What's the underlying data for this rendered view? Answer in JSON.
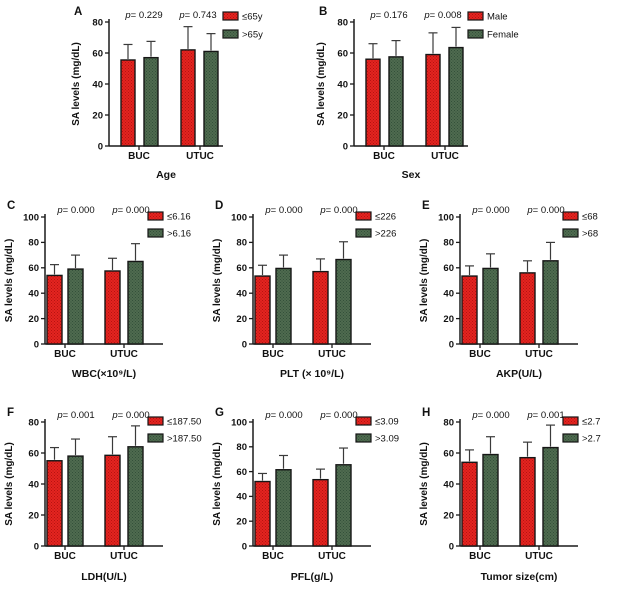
{
  "figure": {
    "background": "#ffffff",
    "ylabel": "SA levels (mg/dL)",
    "categories": [
      "BUC",
      "UTUC"
    ],
    "colors": {
      "red_base": "#e42420",
      "red_dot": "#b51310",
      "green_base": "#4f6b4f",
      "green_dot": "#33503a",
      "bar_stroke": "#161616",
      "axis": "#1a1a1a",
      "error_bar": "#3a3a3a"
    },
    "p_prefix": "p",
    "p_equals": "= "
  },
  "chart_data": [
    {
      "id": "A",
      "type": "bar",
      "row": 1,
      "xlabel": "Age",
      "ylabel": "SA levels (mg/dL)",
      "ymax": 80,
      "ytick_step": 20,
      "categories": [
        "BUC",
        "UTUC"
      ],
      "p_values": [
        "0.229",
        "0.743"
      ],
      "series": [
        {
          "name": "≤65y",
          "color": "red",
          "values": [
            55.5,
            62
          ],
          "errors": [
            10,
            15
          ]
        },
        {
          "name": ">65y",
          "color": "green",
          "values": [
            57,
            61
          ],
          "errors": [
            10.5,
            11.5
          ]
        }
      ]
    },
    {
      "id": "B",
      "type": "bar",
      "row": 1,
      "xlabel": "Sex",
      "ylabel": "SA levels (mg/dL)",
      "ymax": 80,
      "ytick_step": 20,
      "categories": [
        "BUC",
        "UTUC"
      ],
      "p_values": [
        "0.176",
        "0.008"
      ],
      "series": [
        {
          "name": "Male",
          "color": "red",
          "values": [
            56,
            59
          ],
          "errors": [
            10,
            14
          ]
        },
        {
          "name": "Female",
          "color": "green",
          "values": [
            57.5,
            63.5
          ],
          "errors": [
            10.5,
            13
          ]
        }
      ]
    },
    {
      "id": "C",
      "type": "bar",
      "row": 2,
      "xlabel": "WBC(×10⁹/L)",
      "ylabel": "SA levels (mg/dL)",
      "ymax": 100,
      "ytick_step": 20,
      "categories": [
        "BUC",
        "UTUC"
      ],
      "p_values": [
        "0.000",
        "0.000"
      ],
      "series": [
        {
          "name": "≤6.16",
          "color": "red",
          "values": [
            54,
            57.5
          ],
          "errors": [
            8.5,
            10
          ]
        },
        {
          "name": ">6.16",
          "color": "green",
          "values": [
            59,
            65
          ],
          "errors": [
            11,
            14
          ]
        }
      ]
    },
    {
      "id": "D",
      "type": "bar",
      "row": 2,
      "xlabel": "PLT (× 10⁹/L)",
      "ylabel": "SA levels (mg/dL)",
      "ymax": 100,
      "ytick_step": 20,
      "categories": [
        "BUC",
        "UTUC"
      ],
      "p_values": [
        "0.000",
        "0.000"
      ],
      "series": [
        {
          "name": "≤226",
          "color": "red",
          "values": [
            53.5,
            57
          ],
          "errors": [
            8.5,
            10
          ]
        },
        {
          "name": ">226",
          "color": "green",
          "values": [
            59.5,
            66.5
          ],
          "errors": [
            10.5,
            14
          ]
        }
      ]
    },
    {
      "id": "E",
      "type": "bar",
      "row": 2,
      "xlabel": "AKP(U/L)",
      "ylabel": "SA levels (mg/dL)",
      "ymax": 100,
      "ytick_step": 20,
      "categories": [
        "BUC",
        "UTUC"
      ],
      "p_values": [
        "0.000",
        "0.000"
      ],
      "series": [
        {
          "name": "≤68",
          "color": "red",
          "values": [
            53.5,
            56
          ],
          "errors": [
            8,
            9.5
          ]
        },
        {
          "name": ">68",
          "color": "green",
          "values": [
            59.5,
            65.5
          ],
          "errors": [
            11.5,
            14.5
          ]
        }
      ]
    },
    {
      "id": "F",
      "type": "bar",
      "row": 3,
      "xlabel": "LDH(U/L)",
      "ylabel": "SA levels (mg/dL)",
      "ymax": 80,
      "ytick_step": 20,
      "categories": [
        "BUC",
        "UTUC"
      ],
      "p_values": [
        "0.001",
        "0.000"
      ],
      "series": [
        {
          "name": "≤187.50",
          "color": "red",
          "values": [
            55,
            58.5
          ],
          "errors": [
            8.5,
            12
          ]
        },
        {
          "name": ">187.50",
          "color": "green",
          "values": [
            58,
            64
          ],
          "errors": [
            11,
            13.5
          ]
        }
      ]
    },
    {
      "id": "G",
      "type": "bar",
      "row": 3,
      "xlabel": "PFL(g/L)",
      "ylabel": "SA levels (mg/dL)",
      "ymax": 100,
      "ytick_step": 20,
      "categories": [
        "BUC",
        "UTUC"
      ],
      "p_values": [
        "0.000",
        "0.000"
      ],
      "series": [
        {
          "name": "≤3.09",
          "color": "red",
          "values": [
            52,
            53.5
          ],
          "errors": [
            6.5,
            8.5
          ]
        },
        {
          "name": ">3.09",
          "color": "green",
          "values": [
            61.5,
            65.5
          ],
          "errors": [
            11.5,
            13.5
          ]
        }
      ]
    },
    {
      "id": "H",
      "type": "bar",
      "row": 3,
      "xlabel": "Tumor size(cm)",
      "ylabel": "SA levels (mg/dL)",
      "ymax": 80,
      "ytick_step": 20,
      "categories": [
        "BUC",
        "UTUC"
      ],
      "p_values": [
        "0.000",
        "0.001"
      ],
      "series": [
        {
          "name": "≤2.7",
          "color": "red",
          "values": [
            54,
            57
          ],
          "errors": [
            8,
            10
          ]
        },
        {
          "name": ">2.7",
          "color": "green",
          "values": [
            59,
            63.5
          ],
          "errors": [
            11.5,
            14.5
          ]
        }
      ]
    }
  ]
}
